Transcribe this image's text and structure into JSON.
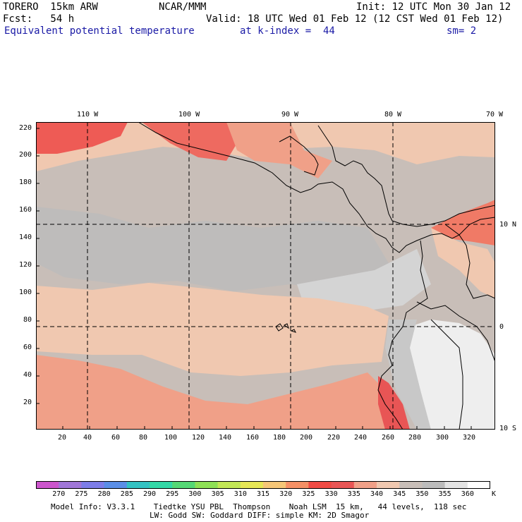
{
  "header": {
    "model": "TORERO  15km ARW",
    "center": "NCAR/MMM",
    "init": "Init: 12 UTC Mon 30 Jan 12",
    "fcst": "Fcst:   54 h",
    "valid": "Valid: 18 UTC Wed 01 Feb 12 (12 CST Wed 01 Feb 12)",
    "field": "Equivalent potential temperature",
    "level": "at k-index =  44",
    "smooth": "sm= 2"
  },
  "axes": {
    "top_lon_labels": [
      "110 W",
      "100 W",
      "90 W",
      "80 W",
      "70 W"
    ],
    "right_lat_labels": [
      "10 N",
      "0",
      "10 S"
    ],
    "y_ticks": [
      "220",
      "200",
      "180",
      "160",
      "140",
      "120",
      "100",
      "80",
      "60",
      "40",
      "20"
    ],
    "x_ticks": [
      "20",
      "40",
      "60",
      "80",
      "100",
      "120",
      "140",
      "160",
      "180",
      "200",
      "220",
      "240",
      "260",
      "280",
      "300",
      "320"
    ]
  },
  "colorbar": {
    "labels": [
      "270",
      "275",
      "280",
      "285",
      "290",
      "295",
      "300",
      "305",
      "310",
      "315",
      "320",
      "325",
      "330",
      "335",
      "340",
      "345",
      "350",
      "355",
      "360"
    ],
    "unit": "K",
    "colors": [
      "#cc55cc",
      "#a077d8",
      "#7d7de8",
      "#5a8ee6",
      "#33c2c2",
      "#33d8a6",
      "#55d875",
      "#8ee055",
      "#c2e655",
      "#e6e655",
      "#f5c677",
      "#f59066",
      "#f04a44",
      "#e85555",
      "#f0a088",
      "#f0c8b0",
      "#c8beb8",
      "#bcbcbc",
      "#e4e4e4",
      "#ffffff"
    ]
  },
  "footer": {
    "line1": "Model Info: V3.3.1    Tiedtke YSU PBL  Thompson    Noah LSM  15 km,   44 levels,  118 sec",
    "line2": "LW: Godd SW: Goddard DIFF: simple KM: 2D Smagor"
  }
}
